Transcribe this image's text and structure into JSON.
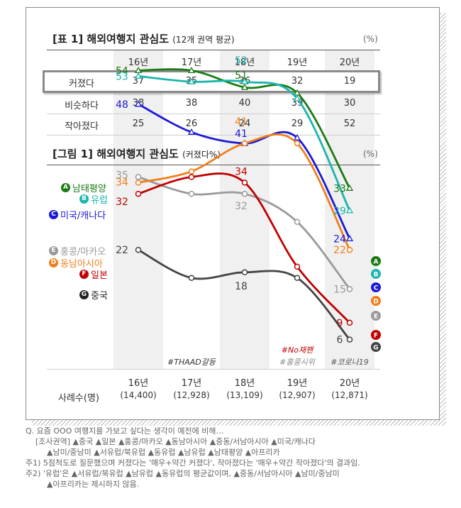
{
  "table": {
    "title": "[표 1] 해외여행지 관심도",
    "subtitle": "(12개 권역 평균)",
    "unit": "(%)",
    "years": [
      "16년",
      "17년",
      "18년",
      "19년",
      "20년"
    ],
    "rows": [
      {
        "label": "커졌다",
        "values": [
          "37",
          "35",
          "36",
          "32",
          "19"
        ]
      },
      {
        "label": "비슷하다",
        "values": [
          "38",
          "38",
          "40",
          "39",
          "30"
        ]
      },
      {
        "label": "작아졌다",
        "values": [
          "25",
          "26",
          "24",
          "29",
          "52"
        ]
      }
    ]
  },
  "figure": {
    "title": "[그림 1] 해외여행지 관심도",
    "subtitle": "(커졌다%)",
    "unit": "(%)",
    "bottom_years": [
      "16년",
      "17년",
      "18년",
      "19년",
      "20년"
    ],
    "sample_label": "사례수(명)",
    "samples": [
      "(14,400)",
      "(12,928)",
      "(13,109)",
      "(12,907)",
      "(12,871)"
    ],
    "annotations": [
      {
        "text": "#THAAD갈등",
        "color": "#333333"
      },
      {
        "text": "#No재팬",
        "color": "#c00000"
      },
      {
        "text": "#홍콩시위",
        "color": "#888888"
      },
      {
        "text": "#코로나19",
        "color": "#555555"
      }
    ]
  },
  "chart_data": {
    "type": "line",
    "title": "[그림 1] 해외여행지 관심도 (커졌다%)",
    "x": [
      "16년",
      "17년",
      "18년",
      "19년",
      "20년"
    ],
    "ylabel": "(%)",
    "series": [
      {
        "letter": "A",
        "name": "남태평양",
        "color": "#1a7a12",
        "marker": "triangle",
        "values": [
          54,
          54,
          51,
          50,
          33
        ],
        "labels": [
          "54",
          "",
          "51",
          "",
          "33"
        ]
      },
      {
        "letter": "B",
        "name": "유럽",
        "color": "#1ab5ad",
        "marker": "triangle",
        "values": [
          53,
          52,
          52,
          49,
          29
        ],
        "labels": [
          "53",
          "",
          "52",
          "",
          "29"
        ]
      },
      {
        "letter": "C",
        "name": "미국/캐나다",
        "color": "#1a1ad6",
        "marker": "triangle",
        "values": [
          48,
          43,
          41,
          42,
          24
        ],
        "labels": [
          "48",
          "",
          "41",
          "",
          "24"
        ]
      },
      {
        "letter": "E",
        "name": "홍콩/마카오",
        "color": "#999999",
        "marker": "circle",
        "values": [
          35,
          32,
          32,
          27,
          15
        ],
        "labels": [
          "35",
          "",
          "32",
          "",
          "15"
        ]
      },
      {
        "letter": "D",
        "name": "동남아시아",
        "color": "#f07f1a",
        "marker": "circle",
        "values": [
          34,
          36,
          41,
          41,
          22
        ],
        "labels": [
          "34",
          "",
          "41",
          "",
          "22"
        ]
      },
      {
        "letter": "F",
        "name": "일본",
        "color": "#c00000",
        "marker": "circle",
        "values": [
          32,
          35,
          34,
          19,
          9
        ],
        "labels": [
          "32",
          "",
          "34",
          "",
          "9"
        ]
      },
      {
        "letter": "G",
        "name": "중국",
        "color": "#444444",
        "marker": "circle",
        "values": [
          22,
          17,
          18,
          17,
          6
        ],
        "labels": [
          "22",
          "",
          "18",
          "",
          "6"
        ]
      }
    ]
  },
  "notes": [
    "Q. 요즘 OOO 여행지를 가보고 싶다는 생각이 예전에 비해…",
    "[조사권역] ▲중국 ▲일본 ▲홍콩/마카오 ▲동남아시아 ▲중동/서남아시아 ▲미국/캐나다",
    "▲남미/중남미 ▲서유럽/북유럽 ▲동유럽 ▲남유럽 ▲남태평양 ▲아프리카",
    "주1) 5점척도로 질문했으며 커졌다는 '매우+약간 커졌다', 작아졌다는 '매우+약간 작아졌다'의 결과임.",
    "주2) '유럽'은 ▲서유럽/북유럽 ▲남유럽 ▲동유럽의 평균값이며, ▲중동/서남아시아 ▲남미/중남미",
    "▲아프리카는 제시하지 않음."
  ]
}
